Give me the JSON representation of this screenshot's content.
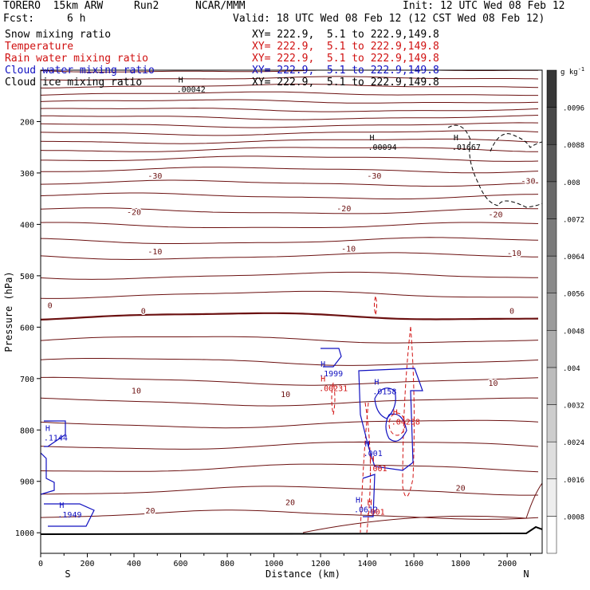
{
  "header": {
    "model": "TORERO  15km ARW",
    "run": "Run2",
    "center": "NCAR/MMM",
    "init": "Init: 12 UTC Wed 08 Feb 12",
    "fcst_label": "Fcst:",
    "fcst_value": "6 h",
    "valid": "Valid: 18 UTC Wed 08 Feb 12 (12 CST Wed 08 Feb 12)"
  },
  "fields": [
    {
      "name": "Snow mixing ratio",
      "xy": "XY= 222.9,  5.1 to 222.9,149.8",
      "color": "#000000"
    },
    {
      "name": "Temperature",
      "xy": "XY= 222.9,  5.1 to 222.9,149.8",
      "color": "#d01010"
    },
    {
      "name": "Rain water mixing ratio",
      "xy": "XY= 222.9,  5.1 to 222.9,149.8",
      "color": "#d01010"
    },
    {
      "name": "Cloud water mixing ratio",
      "xy": "XY= 222.9,  5.1 to 222.9,149.8",
      "color": "#1010c0"
    },
    {
      "name": "Cloud ice mixing ratio",
      "xy": "XY= 222.9,  5.1 to 222.9,149.8",
      "color": "#000000"
    }
  ],
  "chart_data": {
    "type": "contour",
    "xlabel": "Distance (km)",
    "ylabel": "Pressure (hPa)",
    "xlim": [
      0,
      2150
    ],
    "ylim": [
      1040,
      100
    ],
    "x_ticks": [
      "0",
      "200",
      "400",
      "600",
      "800",
      "1000",
      "1200",
      "1400",
      "1600",
      "1800",
      "2000"
    ],
    "y_ticks": [
      "200",
      "300",
      "400",
      "500",
      "600",
      "700",
      "800",
      "900",
      "1000"
    ],
    "x_end_labels": {
      "left": "S",
      "right": "N"
    },
    "colorbar": {
      "unit": "g kg",
      "unit_exp": "-1",
      "labels": [
        ".0008",
        ".0016",
        ".0024",
        ".0032",
        ".004",
        ".0048",
        ".0056",
        ".0064",
        ".0072",
        ".008",
        ".0088",
        ".0096"
      ]
    },
    "temperature_labels": [
      {
        "text": "-30",
        "x": 490,
        "p": 305
      },
      {
        "text": "-30",
        "x": 1430,
        "p": 305
      },
      {
        "text": "-30",
        "x": 2090,
        "p": 315
      },
      {
        "text": "-20",
        "x": 400,
        "p": 375
      },
      {
        "text": "-20",
        "x": 1300,
        "p": 368
      },
      {
        "text": "-20",
        "x": 1950,
        "p": 380
      },
      {
        "text": "-10",
        "x": 490,
        "p": 452
      },
      {
        "text": "-10",
        "x": 1320,
        "p": 447
      },
      {
        "text": "-10",
        "x": 2030,
        "p": 455
      },
      {
        "text": "0",
        "x": 40,
        "p": 557
      },
      {
        "text": "0",
        "x": 440,
        "p": 568
      },
      {
        "text": "0",
        "x": 2020,
        "p": 568
      },
      {
        "text": "10",
        "x": 410,
        "p": 723
      },
      {
        "text": "10",
        "x": 1050,
        "p": 730
      },
      {
        "text": "10",
        "x": 1940,
        "p": 708
      },
      {
        "text": "20",
        "x": 470,
        "p": 956
      },
      {
        "text": "20",
        "x": 1070,
        "p": 940
      },
      {
        "text": "20",
        "x": 1800,
        "p": 912
      }
    ],
    "max_labels": [
      {
        "h": "H",
        "text": ".00042",
        "x": 590,
        "p": 130,
        "series": "snow"
      },
      {
        "h": "H",
        "text": ".00094",
        "x": 1410,
        "p": 243,
        "series": "snow"
      },
      {
        "h": "H",
        "text": ".01667",
        "x": 1770,
        "p": 243,
        "series": "snow"
      },
      {
        "h": "H",
        "text": ".1999",
        "x": 1200,
        "p": 683,
        "series": "cloud_water"
      },
      {
        "h": "H",
        "text": ".00231",
        "x": 1200,
        "p": 712,
        "series": "rain"
      },
      {
        "h": "H",
        "text": ".0158",
        "x": 1430,
        "p": 718,
        "series": "cloud_water"
      },
      {
        "h": "H",
        "text": ".04238",
        "x": 1510,
        "p": 777,
        "series": "rain"
      },
      {
        "h": "H",
        "text": ".1144",
        "x": 20,
        "p": 808,
        "series": "cloud_water"
      },
      {
        "h": "H",
        "text": ".001",
        "x": 1390,
        "p": 838,
        "series": "cloud_water"
      },
      {
        "h": "H",
        "text": ".001",
        "x": 1410,
        "p": 868,
        "series": "rain"
      },
      {
        "h": "H",
        "text": ".0612",
        "x": 1350,
        "p": 948,
        "series": "cloud_water"
      },
      {
        "h": "H",
        "text": ".001",
        "x": 1400,
        "p": 952,
        "series": "rain"
      },
      {
        "h": "H",
        "text": ".1949",
        "x": 80,
        "p": 958,
        "series": "cloud_water"
      }
    ]
  }
}
